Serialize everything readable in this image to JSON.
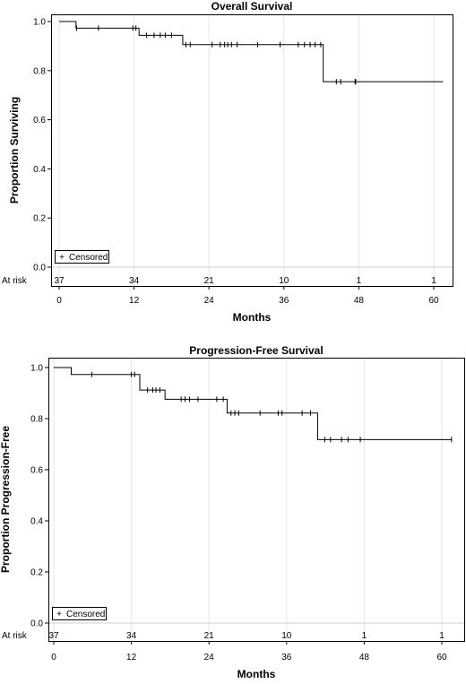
{
  "chart_data": [
    {
      "type": "line",
      "title": "Overall Survival",
      "xlabel": "Months",
      "ylabel": "Proportion Surviving",
      "xlim": [
        0,
        61.5
      ],
      "ylim": [
        0.0,
        1.0
      ],
      "xticks": [
        0,
        12,
        24,
        36,
        48,
        60
      ],
      "yticks": [
        0.0,
        0.2,
        0.4,
        0.6,
        0.8,
        1.0
      ],
      "ytick_labels": [
        "0.0",
        "0.2",
        "0.4",
        "0.6",
        "0.8",
        "1.0"
      ],
      "grid": "vertical",
      "legend": {
        "label": "Censored",
        "marker": "+",
        "placement": "bottom-left"
      },
      "at_risk_label": "At risk",
      "at_risk": [
        {
          "x": 0,
          "n": "37"
        },
        {
          "x": 12,
          "n": "34"
        },
        {
          "x": 24,
          "n": "21"
        },
        {
          "x": 36,
          "n": "10"
        },
        {
          "x": 48,
          "n": "1"
        },
        {
          "x": 60,
          "n": "1"
        }
      ],
      "series": [
        {
          "x": [
            0,
            2.7,
            12.8,
            19.8,
            42.3,
            61.5
          ],
          "y": [
            1.0,
            0.973,
            0.944,
            0.906,
            0.755,
            0.755
          ]
        }
      ],
      "censored": [
        {
          "x": 2.8,
          "y": 0.973
        },
        {
          "x": 6.3,
          "y": 0.973
        },
        {
          "x": 11.8,
          "y": 0.973
        },
        {
          "x": 12.3,
          "y": 0.973
        },
        {
          "x": 14.0,
          "y": 0.944
        },
        {
          "x": 15.2,
          "y": 0.944
        },
        {
          "x": 16.2,
          "y": 0.944
        },
        {
          "x": 17.0,
          "y": 0.944
        },
        {
          "x": 18.0,
          "y": 0.944
        },
        {
          "x": 20.3,
          "y": 0.906
        },
        {
          "x": 21.0,
          "y": 0.906
        },
        {
          "x": 24.5,
          "y": 0.906
        },
        {
          "x": 25.8,
          "y": 0.906
        },
        {
          "x": 26.5,
          "y": 0.906
        },
        {
          "x": 27.0,
          "y": 0.906
        },
        {
          "x": 27.6,
          "y": 0.906
        },
        {
          "x": 28.5,
          "y": 0.906
        },
        {
          "x": 31.8,
          "y": 0.906
        },
        {
          "x": 35.4,
          "y": 0.906
        },
        {
          "x": 38.3,
          "y": 0.906
        },
        {
          "x": 39.3,
          "y": 0.906
        },
        {
          "x": 40.2,
          "y": 0.906
        },
        {
          "x": 41.0,
          "y": 0.906
        },
        {
          "x": 41.9,
          "y": 0.906
        },
        {
          "x": 44.4,
          "y": 0.755
        },
        {
          "x": 45.1,
          "y": 0.755
        },
        {
          "x": 47.4,
          "y": 0.755
        },
        {
          "x": 47.5,
          "y": 0.755
        }
      ]
    },
    {
      "type": "line",
      "title": "Progression-Free Survival",
      "xlabel": "Months",
      "ylabel": "Proportion Progression-Free",
      "xlim": [
        0,
        61.5
      ],
      "ylim": [
        0.0,
        1.0
      ],
      "xticks": [
        0,
        12,
        24,
        36,
        48,
        60
      ],
      "yticks": [
        0.0,
        0.2,
        0.4,
        0.6,
        0.8,
        1.0
      ],
      "ytick_labels": [
        "0.0",
        "0.2",
        "0.4",
        "0.6",
        "0.8",
        "1.0"
      ],
      "grid": "vertical",
      "legend": {
        "label": "Censored",
        "marker": "+",
        "placement": "bottom-left"
      },
      "at_risk_label": "At risk",
      "at_risk": [
        {
          "x": 0,
          "n": "37"
        },
        {
          "x": 12,
          "n": "34"
        },
        {
          "x": 24,
          "n": "21"
        },
        {
          "x": 36,
          "n": "10"
        },
        {
          "x": 48,
          "n": "1"
        },
        {
          "x": 60,
          "n": "1"
        }
      ],
      "series": [
        {
          "x": [
            0,
            2.7,
            13.3,
            17.2,
            26.8,
            40.8,
            61.5
          ],
          "y": [
            1.0,
            0.973,
            0.912,
            0.876,
            0.822,
            0.718,
            0.718
          ]
        }
      ],
      "censored": [
        {
          "x": 5.9,
          "y": 0.973
        },
        {
          "x": 12.0,
          "y": 0.973
        },
        {
          "x": 12.5,
          "y": 0.973
        },
        {
          "x": 14.5,
          "y": 0.912
        },
        {
          "x": 15.3,
          "y": 0.912
        },
        {
          "x": 15.8,
          "y": 0.912
        },
        {
          "x": 16.4,
          "y": 0.912
        },
        {
          "x": 19.7,
          "y": 0.876
        },
        {
          "x": 20.3,
          "y": 0.876
        },
        {
          "x": 21.0,
          "y": 0.876
        },
        {
          "x": 22.3,
          "y": 0.876
        },
        {
          "x": 25.2,
          "y": 0.876
        },
        {
          "x": 26.2,
          "y": 0.876
        },
        {
          "x": 27.4,
          "y": 0.822
        },
        {
          "x": 28.0,
          "y": 0.822
        },
        {
          "x": 28.6,
          "y": 0.822
        },
        {
          "x": 31.9,
          "y": 0.822
        },
        {
          "x": 34.7,
          "y": 0.822
        },
        {
          "x": 35.3,
          "y": 0.822
        },
        {
          "x": 38.4,
          "y": 0.822
        },
        {
          "x": 39.7,
          "y": 0.822
        },
        {
          "x": 41.9,
          "y": 0.718
        },
        {
          "x": 42.8,
          "y": 0.718
        },
        {
          "x": 44.5,
          "y": 0.718
        },
        {
          "x": 45.5,
          "y": 0.718
        },
        {
          "x": 47.4,
          "y": 0.718
        },
        {
          "x": 61.5,
          "y": 0.718
        }
      ]
    }
  ]
}
